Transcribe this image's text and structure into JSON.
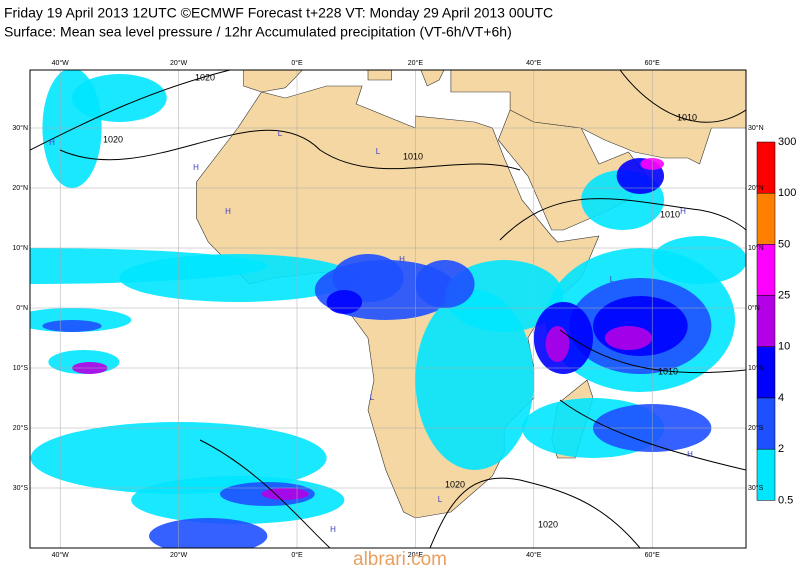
{
  "header": {
    "line1": "Friday 19 April 2013 12UTC ©ECMWF Forecast t+228 VT: Monday 29 April 2013 00UTC",
    "line2": "Surface: Mean sea level pressure / 12hr Accumulated precipitation (VT-6h/VT+6h)"
  },
  "lon_ticks": [
    "40°W",
    "20°W",
    "0°E",
    "20°E",
    "40°E",
    "60°E"
  ],
  "lat_ticks": [
    "30°N",
    "20°N",
    "10°N",
    "0°N",
    "10°S",
    "20°S",
    "30°S"
  ],
  "colorbar": {
    "labels": [
      "300",
      "100",
      "50",
      "25",
      "10",
      "4",
      "2",
      "0.5"
    ],
    "colors": [
      "#ff0000",
      "#ff8000",
      "#ff00ff",
      "#b400e6",
      "#0000ff",
      "#1e50ff",
      "#00e6ff"
    ]
  },
  "isobar_labels": [
    "1020",
    "1020",
    "1010",
    "1010",
    "1010",
    "1010",
    "1020",
    "1020"
  ],
  "pressure_centers": [
    "H",
    "H",
    "L",
    "H",
    "L",
    "H",
    "L",
    "H",
    "L",
    "H",
    "H",
    "L"
  ],
  "watermark": "albrari.com"
}
